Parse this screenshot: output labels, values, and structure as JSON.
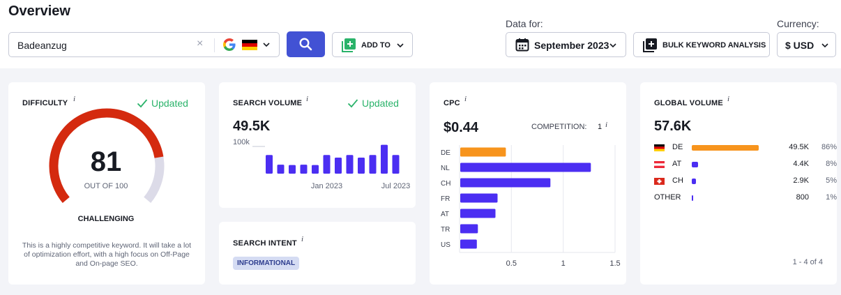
{
  "header": {
    "title": "Overview",
    "search_value": "Badeanzug",
    "clear_label": "×",
    "add_to_label": "ADD TO",
    "data_for_label": "Data for:",
    "date_value": "September 2023",
    "bulk_label": "BULK KEYWORD ANALYSIS",
    "currency_label": "Currency:",
    "currency_value": "$ USD"
  },
  "difficulty": {
    "label": "DIFFICULTY",
    "info": "i",
    "updated": "Updated",
    "score": "81",
    "out_of": "OUT OF 100",
    "level": "CHALLENGING",
    "score_fraction": 0.81,
    "description": "This is a highly competitive keyword. It will take a lot of optimization effort, with a high focus on Off-Page and On-page SEO.",
    "colors": {
      "fill": "#d42a0f",
      "track": "#dcdbe8"
    }
  },
  "search_volume": {
    "label": "SEARCH VOLUME",
    "info": "i",
    "updated": "Updated",
    "value": "49.5K",
    "chart_data": {
      "type": "bar",
      "ytick_label": "100k",
      "ymax": 100,
      "values": [
        58,
        28,
        27,
        28,
        27,
        58,
        50,
        58,
        50,
        58,
        90,
        58
      ],
      "xtick_labels": [
        "Jan 2023",
        "Jul 2023"
      ],
      "xtick_positions": [
        5,
        11
      ],
      "color": "#4b2ef2"
    }
  },
  "search_intent": {
    "label": "SEARCH INTENT",
    "info": "i",
    "badge": "INFORMATIONAL"
  },
  "cpc": {
    "label": "CPC",
    "info": "i",
    "value": "$0.44",
    "competition_label": "COMPETITION:",
    "competition_value": "1",
    "competition_info": "i",
    "chart_data": {
      "type": "bar",
      "orientation": "horizontal",
      "categories": [
        "DE",
        "NL",
        "CH",
        "FR",
        "AT",
        "TR",
        "US"
      ],
      "values": [
        0.44,
        1.26,
        0.87,
        0.36,
        0.34,
        0.17,
        0.16
      ],
      "highlight_index": 0,
      "xlim": [
        0,
        1.5
      ],
      "xticks": [
        0.5,
        1,
        1.5
      ],
      "xtick_labels": [
        "0.5",
        "1",
        "1.5"
      ],
      "colors": {
        "highlight": "#f7941d",
        "bar": "#4b2ef2",
        "grid": "#e6e7ee"
      }
    }
  },
  "global_volume": {
    "label": "GLOBAL VOLUME",
    "info": "i",
    "value": "57.6K",
    "rows": [
      {
        "code": "DE",
        "flag": "flag-de",
        "volume": "49.5K",
        "percent": "86%",
        "fraction": 0.86,
        "bar_color": "#f7941d"
      },
      {
        "code": "AT",
        "flag": "flag-at",
        "volume": "4.4K",
        "percent": "8%",
        "fraction": 0.08,
        "bar_color": "#4b2ef2"
      },
      {
        "code": "CH",
        "flag": "flag-ch",
        "volume": "2.9K",
        "percent": "5%",
        "fraction": 0.05,
        "bar_color": "#4b2ef2"
      },
      {
        "code": "OTHER",
        "flag": "",
        "volume": "800",
        "percent": "1%",
        "fraction": 0.01,
        "bar_color": "#4b2ef2"
      }
    ],
    "pager": "1 - 4 of 4"
  }
}
